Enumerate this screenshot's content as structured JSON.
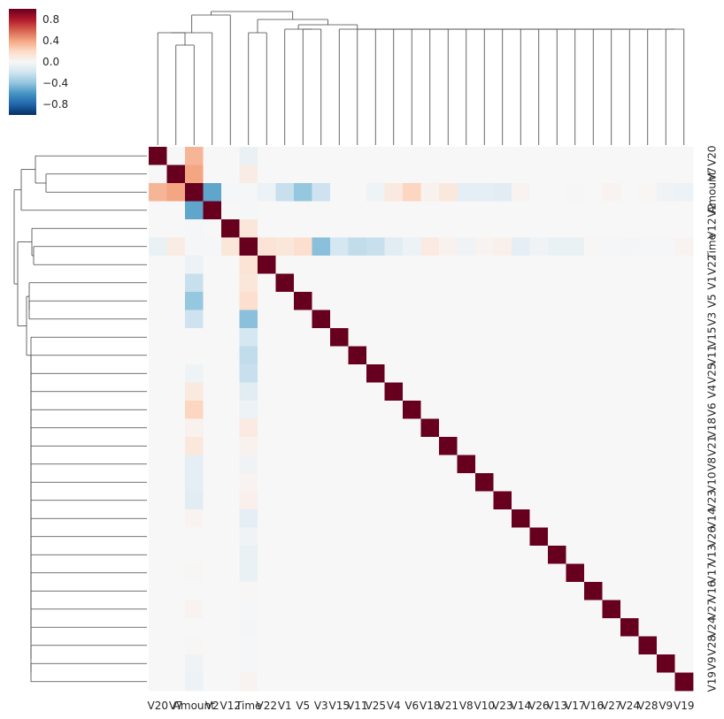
{
  "chart_data": {
    "type": "heatmap",
    "title": "",
    "labels": [
      "V20",
      "V7",
      "Amount",
      "V2",
      "V12",
      "Time",
      "V22",
      "V1",
      "V5",
      "V3",
      "V15",
      "V11",
      "V25",
      "V4",
      "V6",
      "V18",
      "V21",
      "V8",
      "V10",
      "V23",
      "V14",
      "V26",
      "V13",
      "V17",
      "V16",
      "V27",
      "V24",
      "V28",
      "V9",
      "V19"
    ],
    "colorbar": {
      "ticks": [
        "0.8",
        "0.4",
        "0.0",
        "−0.4",
        "−0.8"
      ],
      "range": [
        -1,
        1
      ],
      "colormap": "RdBu_r"
    },
    "values_description": "correlation matrix, diagonal = 1",
    "amount_row": [
      0.34,
      0.4,
      1,
      -0.53,
      -0.01,
      -0.01,
      -0.06,
      -0.23,
      -0.39,
      -0.21,
      0,
      0,
      -0.05,
      0.1,
      0.22,
      0.04,
      0.11,
      -0.1,
      -0.1,
      -0.11,
      0.03,
      0,
      0,
      0.01,
      0,
      0.03,
      0,
      0.01,
      -0.04,
      -0.06
    ],
    "time_row": [
      -0.07,
      0.08,
      -0.01,
      -0.01,
      0.12,
      1,
      0.14,
      0.12,
      0.17,
      -0.42,
      -0.18,
      -0.25,
      -0.23,
      -0.11,
      -0.06,
      0.09,
      0.04,
      -0.04,
      0.03,
      0.05,
      -0.1,
      -0.04,
      -0.07,
      -0.07,
      0.01,
      -0.01,
      -0.02,
      -0.01,
      -0.01,
      0.03
    ],
    "other_amount_col_entries": [
      {
        "row": "V20",
        "value": 0.34
      },
      {
        "row": "V7",
        "value": 0.4
      },
      {
        "row": "V2",
        "value": -0.53
      },
      {
        "row": "V22",
        "value": -0.06
      },
      {
        "row": "V1",
        "value": -0.23
      },
      {
        "row": "V5",
        "value": -0.39
      },
      {
        "row": "V3",
        "value": -0.21
      },
      {
        "row": "V25",
        "value": -0.05
      },
      {
        "row": "V4",
        "value": 0.1
      },
      {
        "row": "V6",
        "value": 0.22
      },
      {
        "row": "V18",
        "value": 0.04
      },
      {
        "row": "V21",
        "value": 0.11
      },
      {
        "row": "V8",
        "value": -0.1
      },
      {
        "row": "V10",
        "value": -0.1
      },
      {
        "row": "V23",
        "value": -0.11
      },
      {
        "row": "V14",
        "value": 0.03
      },
      {
        "row": "V27",
        "value": 0.03
      },
      {
        "row": "V9",
        "value": -0.04
      },
      {
        "row": "V19",
        "value": -0.06
      }
    ],
    "grid": false
  }
}
